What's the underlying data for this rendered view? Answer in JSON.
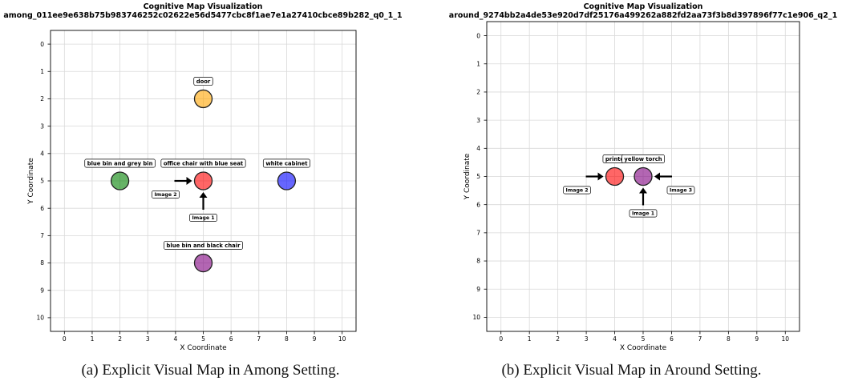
{
  "figures": [
    {
      "caption": "(a) Explicit Visual Map in Among Setting.",
      "chart_data": {
        "type": "scatter",
        "title": "Cognitive Map Visualization",
        "subtitle": "among_011ee9e638b75b983746252c02622e56d5477cbc8f1ae7e1a27410cbce89b282_q0_1_1",
        "xlabel": "X Coordinate",
        "ylabel": "Y Coordinate",
        "xlim": [
          -0.5,
          10.5
        ],
        "ylim": [
          10.5,
          -0.5
        ],
        "y_inverted": true,
        "xticks": [
          0,
          1,
          2,
          3,
          4,
          5,
          6,
          7,
          8,
          9,
          10
        ],
        "yticks": [
          0,
          1,
          2,
          3,
          4,
          5,
          6,
          7,
          8,
          9,
          10
        ],
        "grid": true,
        "objects": [
          {
            "label": "door",
            "x": 5,
            "y": 2,
            "color": "#ffa500"
          },
          {
            "label": "blue bin and grey bin",
            "x": 2,
            "y": 5,
            "color": "#008000"
          },
          {
            "label": "office chair with blue seat",
            "x": 5,
            "y": 5,
            "color": "#ff0000"
          },
          {
            "label": "white cabinet",
            "x": 8,
            "y": 5,
            "color": "#0000ff"
          },
          {
            "label": "blue bin and black chair",
            "x": 5,
            "y": 8,
            "color": "#800080"
          }
        ],
        "views": [
          {
            "label": "Image 1",
            "x": 5,
            "y": 5,
            "from": "below"
          },
          {
            "label": "Image 2",
            "x": 5,
            "y": 5,
            "from": "left"
          }
        ]
      }
    },
    {
      "caption": "(b) Explicit Visual Map in Around Setting.",
      "chart_data": {
        "type": "scatter",
        "title": "Cognitive Map Visualization",
        "subtitle": "around_9274bb2a4de53e920d7df25176a499262a882fd2aa73f3b8d397896f77c1e906_q2_1",
        "xlabel": "X Coordinate",
        "ylabel": "Y Coordinate",
        "xlim": [
          -0.5,
          10.5
        ],
        "ylim": [
          10.5,
          -0.5
        ],
        "y_inverted": true,
        "xticks": [
          0,
          1,
          2,
          3,
          4,
          5,
          6,
          7,
          8,
          9,
          10
        ],
        "yticks": [
          0,
          1,
          2,
          3,
          4,
          5,
          6,
          7,
          8,
          9,
          10
        ],
        "grid": true,
        "objects": [
          {
            "label": "printe",
            "x": 4,
            "y": 5,
            "color": "#ff0000"
          },
          {
            "label": "yellow torch",
            "x": 5,
            "y": 5,
            "color": "#800080"
          }
        ],
        "views": [
          {
            "label": "Image 1",
            "x": 5,
            "y": 5,
            "from": "below"
          },
          {
            "label": "Image 2",
            "x": 4,
            "y": 5,
            "from": "left"
          },
          {
            "label": "Image 3",
            "x": 5,
            "y": 5,
            "from": "right"
          }
        ]
      }
    }
  ]
}
